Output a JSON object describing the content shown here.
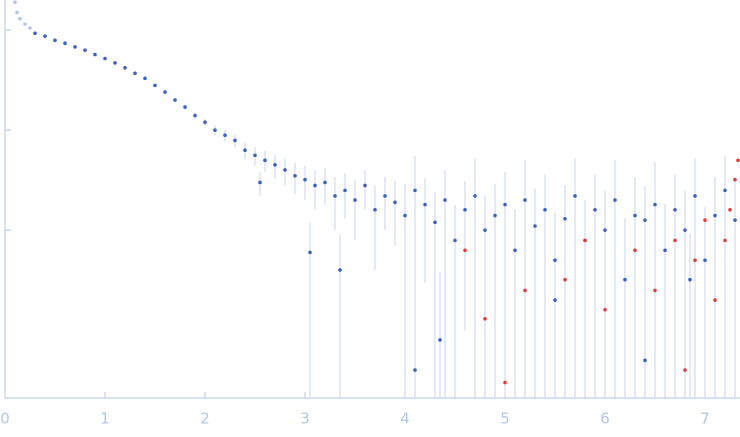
{
  "chart_data": {
    "type": "scatter",
    "log_y": true,
    "grid": false,
    "xlim": [
      0,
      7.35
    ],
    "xticks": [
      0,
      1,
      2,
      3,
      4,
      5,
      6,
      7
    ],
    "ylim": [
      0.00021,
      2
    ],
    "yticks": [
      0.01,
      0.1,
      1
    ],
    "error_color": "#c7d5ec",
    "axis_color": "#b4c6e4",
    "series": [
      {
        "color": "#b4c6e4",
        "x": [
          0.1,
          0.12,
          0.15,
          0.2,
          0.25
        ],
        "values": [
          1.9,
          1.5,
          1.3,
          1.15,
          1.05
        ]
      },
      {
        "color": "#3a62be",
        "x": [
          0.3,
          0.4,
          0.5,
          0.6,
          0.7,
          0.8,
          0.9,
          1.0,
          1.1,
          1.2,
          1.3,
          1.4,
          1.5,
          1.6,
          1.7,
          1.8,
          1.9,
          2.0,
          2.1,
          2.2,
          2.3,
          2.4,
          2.5,
          2.6,
          2.7,
          2.8,
          2.9,
          3.0,
          3.1,
          3.2,
          3.3,
          3.4,
          3.5,
          3.6,
          3.7,
          3.8,
          3.9,
          4.0,
          4.1,
          4.2,
          4.3,
          4.4,
          4.5,
          4.6,
          4.7,
          4.8,
          4.9,
          5.0,
          5.1,
          5.2,
          5.3,
          5.4,
          5.5,
          5.6,
          5.7,
          5.8,
          5.9,
          6.0,
          6.1,
          6.2,
          6.3,
          6.4,
          6.5,
          6.6,
          6.7,
          6.8,
          6.9,
          7.0,
          7.1,
          7.2,
          7.3,
          3.35,
          4.35,
          4.1,
          5.5,
          6.4,
          6.85,
          3.05,
          2.55
        ],
        "values": [
          0.93,
          0.87,
          0.79,
          0.74,
          0.68,
          0.63,
          0.57,
          0.52,
          0.47,
          0.42,
          0.37,
          0.33,
          0.28,
          0.24,
          0.2,
          0.17,
          0.14,
          0.12,
          0.1,
          0.089,
          0.079,
          0.063,
          0.056,
          0.05,
          0.045,
          0.04,
          0.035,
          0.032,
          0.028,
          0.03,
          0.022,
          0.025,
          0.02,
          0.028,
          0.016,
          0.022,
          0.019,
          0.014,
          0.025,
          0.018,
          0.012,
          0.02,
          0.0079,
          0.016,
          0.022,
          0.01,
          0.014,
          0.018,
          0.0063,
          0.02,
          0.011,
          0.016,
          0.005,
          0.013,
          0.022,
          0.0079,
          0.016,
          0.01,
          0.02,
          0.0032,
          0.014,
          0.0126,
          0.018,
          0.0063,
          0.016,
          0.01,
          0.022,
          0.005,
          0.014,
          0.025,
          0.0126,
          0.004,
          0.0008,
          0.0004,
          0.002,
          0.0005,
          0.0032,
          0.006,
          0.03
        ],
        "errors": [
          0.01,
          0.01,
          0.01,
          0.01,
          0.01,
          0.01,
          0.01,
          0.01,
          0.01,
          0.01,
          0.01,
          0.01,
          0.01,
          0.01,
          0.01,
          0.01,
          0.01,
          0.01,
          0.012,
          0.012,
          0.012,
          0.012,
          0.012,
          0.012,
          0.012,
          0.012,
          0.012,
          0.012,
          0.012,
          0.012,
          0.012,
          0.012,
          0.012,
          0.012,
          0.012,
          0.012,
          0.012,
          0.015,
          0.03,
          0.015,
          0.012,
          0.02,
          0.01,
          0.015,
          0.03,
          0.012,
          0.015,
          0.02,
          0.01,
          0.03,
          0.015,
          0.02,
          0.01,
          0.015,
          0.03,
          0.012,
          0.02,
          0.015,
          0.03,
          0.01,
          0.02,
          0.015,
          0.03,
          0.012,
          0.02,
          0.015,
          0.03,
          0.012,
          0.02,
          0.03,
          0.02,
          0.005,
          0.003,
          0.003,
          0.005,
          0.004,
          0.006,
          0.006,
          0.008
        ]
      },
      {
        "color": "#e53a3a",
        "x": [
          4.6,
          4.8,
          5.0,
          5.2,
          5.6,
          5.8,
          6.0,
          6.3,
          6.5,
          6.7,
          6.8,
          6.9,
          7.0,
          7.1,
          7.2,
          7.3,
          7.33,
          7.25
        ],
        "values": [
          0.0063,
          0.0013,
          0.0003,
          0.0025,
          0.0032,
          0.0079,
          0.0016,
          0.0063,
          0.0025,
          0.0079,
          0.0004,
          0.005,
          0.0126,
          0.002,
          0.0079,
          0.032,
          0.05,
          0.016
        ]
      }
    ]
  }
}
